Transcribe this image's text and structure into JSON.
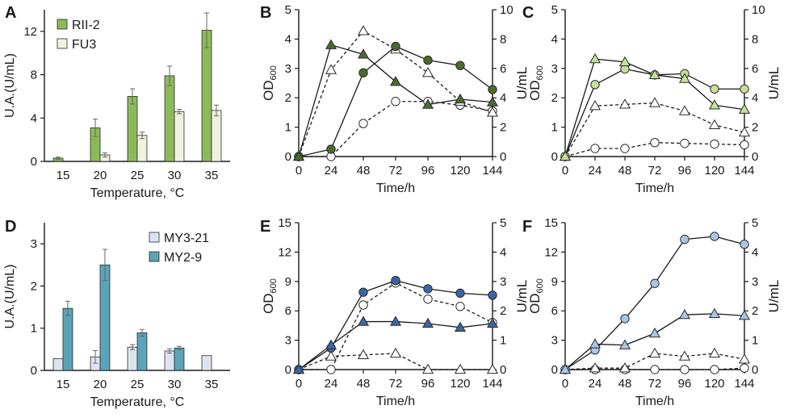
{
  "figure": {
    "panel_labels": [
      "A",
      "B",
      "C",
      "D",
      "E",
      "F"
    ],
    "colors": {
      "rii2": "#8cba5a",
      "fu3": "#eef2de",
      "my321": "#dde4f0",
      "my29": "#5ba3b8",
      "b_dark": "#4b6b2c",
      "c_light": "#c6e09a",
      "e_dark": "#3b65a8",
      "f_light": "#a9c6e6",
      "axis": "#1a1a1a"
    }
  },
  "chart_data": [
    {
      "panel": "A",
      "type": "bar",
      "categories": [
        "15",
        "20",
        "25",
        "30",
        "35"
      ],
      "xlabel": "Temperature, °C",
      "ylabel": "U.A.(U/mL)",
      "ylim": [
        0,
        14
      ],
      "yticks": [
        0,
        4,
        8,
        12
      ],
      "legend": "top-left",
      "series": [
        {
          "name": "RII-2",
          "color_key": "rii2",
          "values": [
            0.3,
            3.1,
            6.0,
            7.9,
            12.1
          ],
          "errors": [
            0.1,
            0.8,
            0.7,
            0.9,
            1.6
          ]
        },
        {
          "name": "FU3",
          "color_key": "fu3",
          "values": [
            null,
            0.6,
            2.4,
            4.6,
            4.7
          ],
          "errors": [
            0,
            0.2,
            0.3,
            0.2,
            0.5
          ]
        }
      ]
    },
    {
      "panel": "B",
      "type": "line",
      "x": [
        0,
        24,
        48,
        72,
        96,
        120,
        144
      ],
      "xticks": [
        0,
        24,
        48,
        72,
        96,
        120,
        144
      ],
      "xlabel": "Time/h",
      "ylabel": "OD600",
      "ylabel_right": "U/mL",
      "ylim": [
        0,
        5
      ],
      "yticks": [
        0,
        1,
        2,
        3,
        4,
        5
      ],
      "ylim_right": [
        0,
        10
      ],
      "yticks_right": [
        0,
        2,
        4,
        6,
        8,
        10
      ],
      "series": [
        {
          "name": "OD600 (circle, filled)",
          "axis": "left",
          "marker": "circle",
          "fill_key": "b_dark",
          "dashed": false,
          "values": [
            0,
            0.25,
            2.85,
            3.75,
            3.28,
            3.1,
            2.28
          ]
        },
        {
          "name": "OD600 (triangle, filled)",
          "axis": "left",
          "marker": "triangle",
          "fill_key": "b_dark",
          "dashed": false,
          "values": [
            0,
            3.8,
            3.48,
            2.55,
            1.77,
            1.95,
            1.85
          ]
        },
        {
          "name": "U/mL (circle, open)",
          "axis": "right",
          "marker": "circle",
          "fill_key": "open",
          "dashed": true,
          "values": [
            0,
            0,
            2.25,
            3.75,
            3.75,
            3.5,
            3.1
          ]
        },
        {
          "name": "U/mL (triangle, open)",
          "axis": "right",
          "marker": "triangle",
          "fill_key": "open",
          "dashed": true,
          "values": [
            0,
            5.9,
            8.55,
            7.3,
            5.7,
            3.75,
            3.0
          ]
        }
      ]
    },
    {
      "panel": "C",
      "type": "line",
      "x": [
        0,
        24,
        48,
        72,
        96,
        120,
        144
      ],
      "xticks": [
        0,
        24,
        48,
        72,
        96,
        120,
        144
      ],
      "xlabel": "Time/h",
      "ylabel": "OD600",
      "ylabel_right": "U/mL",
      "ylim": [
        0,
        5
      ],
      "yticks": [
        0,
        1,
        2,
        3,
        4,
        5
      ],
      "ylim_right": [
        0,
        10
      ],
      "yticks_right": [
        0,
        2,
        4,
        6,
        8,
        10
      ],
      "series": [
        {
          "name": "OD600 (circle, filled)",
          "axis": "left",
          "marker": "circle",
          "fill_key": "c_light",
          "dashed": false,
          "values": [
            0,
            2.45,
            2.98,
            2.78,
            2.82,
            2.3,
            2.3
          ]
        },
        {
          "name": "OD600 (triangle, filled)",
          "axis": "left",
          "marker": "triangle",
          "fill_key": "c_light",
          "dashed": false,
          "values": [
            0,
            3.32,
            3.22,
            2.78,
            2.65,
            1.75,
            1.6
          ]
        },
        {
          "name": "U/mL (circle, open)",
          "axis": "right",
          "marker": "circle",
          "fill_key": "open",
          "dashed": true,
          "values": [
            0,
            0.55,
            0.55,
            0.95,
            0.9,
            0.85,
            0.8
          ]
        },
        {
          "name": "U/mL (triangle, open)",
          "axis": "right",
          "marker": "triangle",
          "fill_key": "open",
          "dashed": true,
          "values": [
            0,
            3.45,
            3.55,
            3.65,
            3.1,
            2.15,
            1.65
          ]
        }
      ]
    },
    {
      "panel": "D",
      "type": "bar",
      "categories": [
        "15",
        "20",
        "25",
        "30",
        "35"
      ],
      "xlabel": "Temperature, °C",
      "ylabel": "U.A.(U/mL)",
      "ylim": [
        0,
        3.5
      ],
      "yticks": [
        0,
        1,
        2,
        3
      ],
      "legend": "top-right",
      "series": [
        {
          "name": "MY3-21",
          "color_key": "my321",
          "values": [
            0.28,
            0.32,
            0.55,
            0.46,
            0.35
          ],
          "errors": [
            0,
            0.15,
            0.06,
            0.05,
            0
          ]
        },
        {
          "name": "MY2-9",
          "color_key": "my29",
          "values": [
            1.47,
            2.5,
            0.89,
            0.53,
            null
          ],
          "errors": [
            0.17,
            0.37,
            0.08,
            0.04,
            0
          ]
        }
      ]
    },
    {
      "panel": "E",
      "type": "line",
      "x": [
        0,
        24,
        48,
        72,
        96,
        120,
        144
      ],
      "xticks": [
        0,
        24,
        48,
        72,
        96,
        120,
        144
      ],
      "xlabel": "Time/h",
      "ylabel": "OD600",
      "ylabel_right": "U/mL",
      "ylim": [
        0,
        15
      ],
      "yticks": [
        0,
        3,
        6,
        9,
        12,
        15
      ],
      "ylim_right": [
        0,
        5
      ],
      "yticks_right": [
        0,
        1,
        2,
        3,
        4,
        5
      ],
      "series": [
        {
          "name": "OD600 (circle, filled)",
          "axis": "left",
          "marker": "circle",
          "fill_key": "e_dark",
          "dashed": false,
          "values": [
            0,
            2.2,
            7.9,
            9.1,
            8.25,
            7.8,
            7.6
          ]
        },
        {
          "name": "OD600 (triangle, filled)",
          "axis": "left",
          "marker": "triangle",
          "fill_key": "e_dark",
          "dashed": false,
          "values": [
            0,
            2.5,
            4.9,
            4.9,
            4.7,
            4.3,
            4.7
          ]
        },
        {
          "name": "U/mL (circle, open)",
          "axis": "right",
          "marker": "circle",
          "fill_key": "open",
          "dashed": true,
          "values": [
            0,
            0,
            2.2,
            2.95,
            2.4,
            2.15,
            1.6
          ]
        },
        {
          "name": "U/mL (triangle, open)",
          "axis": "right",
          "marker": "triangle",
          "fill_key": "open",
          "dashed": true,
          "values": [
            0,
            0.45,
            0.5,
            0.55,
            0,
            0,
            0
          ]
        }
      ]
    },
    {
      "panel": "F",
      "type": "line",
      "x": [
        0,
        24,
        48,
        72,
        96,
        120,
        144
      ],
      "xticks": [
        0,
        24,
        48,
        72,
        96,
        120,
        144
      ],
      "xlabel": "Time/h",
      "ylabel": "OD600",
      "ylabel_right": "U/mL",
      "ylim": [
        0,
        15
      ],
      "yticks": [
        0,
        3,
        6,
        9,
        12,
        15
      ],
      "ylim_right": [
        0,
        5
      ],
      "yticks_right": [
        0,
        1,
        2,
        3,
        4,
        5
      ],
      "series": [
        {
          "name": "OD600 (circle, filled)",
          "axis": "left",
          "marker": "circle",
          "fill_key": "f_light",
          "dashed": false,
          "values": [
            0,
            2.0,
            5.2,
            8.8,
            13.3,
            13.6,
            12.8
          ]
        },
        {
          "name": "OD600 (triangle, filled)",
          "axis": "left",
          "marker": "triangle",
          "fill_key": "f_light",
          "dashed": false,
          "values": [
            0,
            2.6,
            2.5,
            3.7,
            5.6,
            5.7,
            5.5
          ]
        },
        {
          "name": "U/mL (circle, open)",
          "axis": "right",
          "marker": "circle",
          "fill_key": "open",
          "dashed": true,
          "values": [
            0,
            0,
            0,
            0,
            0,
            0,
            0.05
          ]
        },
        {
          "name": "U/mL (triangle, open)",
          "axis": "right",
          "marker": "triangle",
          "fill_key": "open",
          "dashed": true,
          "values": [
            0,
            0.05,
            0.05,
            0.55,
            0.45,
            0.55,
            0.35
          ]
        }
      ]
    }
  ]
}
